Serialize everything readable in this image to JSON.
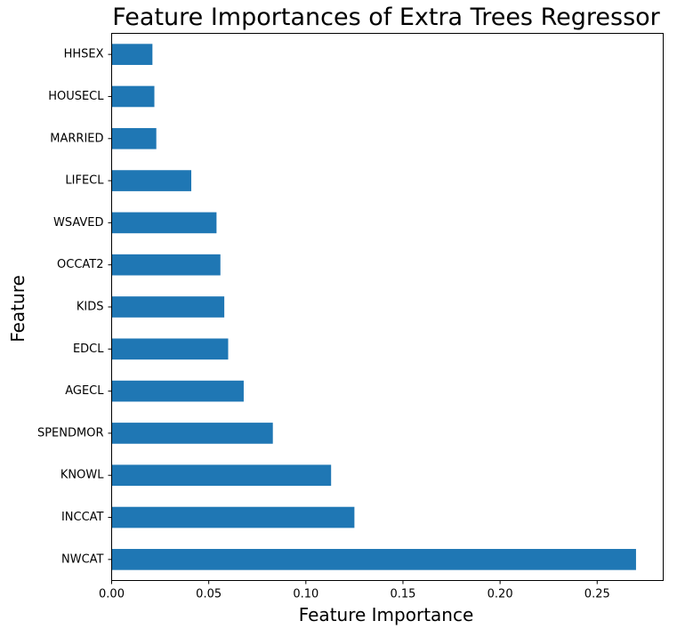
{
  "chart_data": {
    "type": "bar",
    "orientation": "horizontal",
    "title": "Feature Importances of Extra Trees Regressor",
    "xlabel": "Feature Importance",
    "ylabel": "Feature",
    "categories": [
      "NWCAT",
      "INCCAT",
      "KNOWL",
      "SPENDMOR",
      "AGECL",
      "EDCL",
      "KIDS",
      "OCCAT2",
      "WSAVED",
      "LIFECL",
      "MARRIED",
      "HOUSECL",
      "HHSEX"
    ],
    "values": [
      0.27,
      0.125,
      0.113,
      0.083,
      0.068,
      0.06,
      0.058,
      0.056,
      0.054,
      0.041,
      0.023,
      0.022,
      0.021
    ],
    "xlim": [
      0,
      0.284
    ],
    "xticks": [
      0.0,
      0.05,
      0.1,
      0.15,
      0.2,
      0.25
    ],
    "xtick_labels": [
      "0.00",
      "0.05",
      "0.10",
      "0.15",
      "0.20",
      "0.25"
    ],
    "bar_color": "#1f77b4",
    "grid": false,
    "legend": "none"
  }
}
